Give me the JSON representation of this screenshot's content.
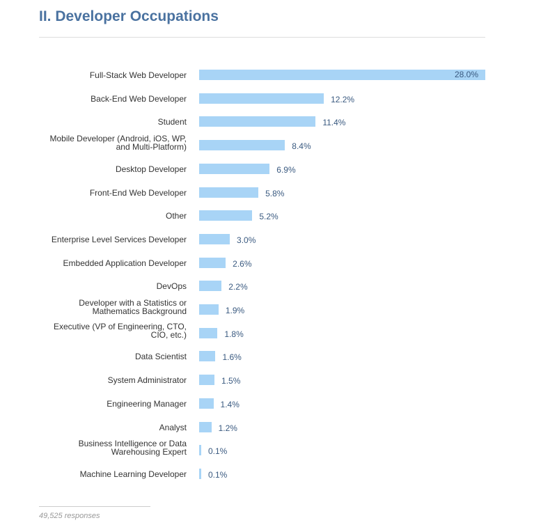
{
  "chart_data": {
    "type": "bar",
    "orientation": "horizontal",
    "title": "II. Developer Occupations",
    "categories": [
      [
        "Full-Stack Web Developer"
      ],
      [
        "Back-End Web Developer"
      ],
      [
        "Student"
      ],
      [
        "Mobile Developer (Android, iOS, WP,",
        "and Multi-Platform)"
      ],
      [
        "Desktop Developer"
      ],
      [
        "Front-End Web Developer"
      ],
      [
        "Other"
      ],
      [
        "Enterprise Level Services Developer"
      ],
      [
        "Embedded Application Developer"
      ],
      [
        "DevOps"
      ],
      [
        "Developer with a Statistics or",
        "Mathematics Background"
      ],
      [
        "Executive (VP of Engineering, CTO,",
        "CIO, etc.)"
      ],
      [
        "Data Scientist"
      ],
      [
        "System Administrator"
      ],
      [
        "Engineering Manager"
      ],
      [
        "Analyst"
      ],
      [
        "Business Intelligence or Data",
        "Warehousing Expert"
      ],
      [
        "Machine Learning Developer"
      ]
    ],
    "values": [
      28.0,
      12.2,
      11.4,
      8.4,
      6.9,
      5.8,
      5.2,
      3.0,
      2.6,
      2.2,
      1.9,
      1.8,
      1.6,
      1.5,
      1.4,
      1.2,
      0.1,
      0.1
    ],
    "value_labels": [
      "28.0%",
      "12.2%",
      "11.4%",
      "8.4%",
      "6.9%",
      "5.8%",
      "5.2%",
      "3.0%",
      "2.6%",
      "2.2%",
      "1.9%",
      "1.8%",
      "1.6%",
      "1.5%",
      "1.4%",
      "1.2%",
      "0.1%",
      "0.1%"
    ],
    "xlim": [
      0,
      28
    ],
    "grid": false,
    "bar_color": "#a8d4f6"
  },
  "footer": "49,525 responses"
}
